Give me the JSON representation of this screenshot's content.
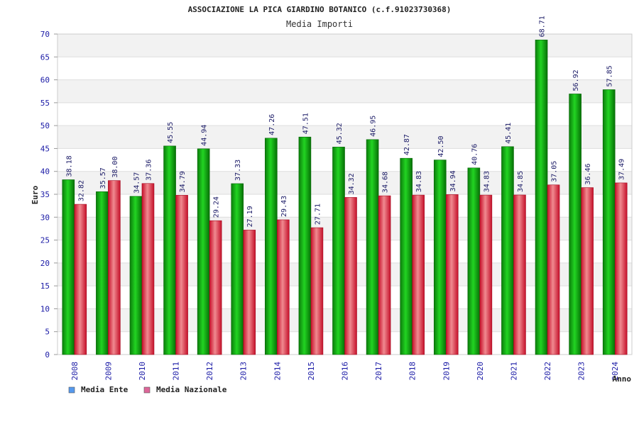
{
  "chart_data": {
    "type": "bar",
    "title": "ASSOCIAZIONE LA PICA GIARDINO BOTANICO (c.f.91023730368)",
    "subtitle": "Media Importi",
    "xlabel": "Anno",
    "ylabel": "Euro",
    "ylim": [
      0,
      70
    ],
    "ytick_step": 5,
    "grid": true,
    "legend_position": "bottom-left",
    "categories": [
      "2008",
      "2009",
      "2010",
      "2011",
      "2012",
      "2013",
      "2014",
      "2015",
      "2016",
      "2017",
      "2018",
      "2019",
      "2020",
      "2021",
      "2022",
      "2023",
      "2024"
    ],
    "series": [
      {
        "name": "Media Ente",
        "color": "#12b312",
        "legend_color": "#5599ee",
        "values": [
          38.18,
          35.57,
          34.57,
          45.55,
          44.94,
          37.33,
          47.26,
          47.51,
          45.32,
          46.95,
          42.87,
          42.5,
          40.76,
          45.41,
          68.71,
          56.92,
          57.85
        ],
        "labels": [
          "38.18",
          "35.57",
          "34.57",
          "45.55",
          "44.94",
          "37.33",
          "47.26",
          "47.51",
          "45.32",
          "46.95",
          "42.87",
          "42.50",
          "40.76",
          "45.41",
          "68.71",
          "56.92",
          "57.85"
        ]
      },
      {
        "name": "Media Nazionale",
        "color": "#e8303c",
        "legend_color": "#dd6699",
        "values": [
          32.82,
          38.0,
          37.36,
          34.79,
          29.24,
          27.19,
          29.43,
          27.71,
          34.32,
          34.68,
          34.83,
          34.94,
          34.83,
          34.85,
          37.05,
          36.46,
          37.49
        ],
        "labels": [
          "32.82",
          "38.00",
          "37.36",
          "34.79",
          "29.24",
          "27.19",
          "29.43",
          "27.71",
          "34.32",
          "34.68",
          "34.83",
          "34.94",
          "34.83",
          "34.85",
          "37.05",
          "36.46",
          "37.49"
        ]
      }
    ]
  }
}
